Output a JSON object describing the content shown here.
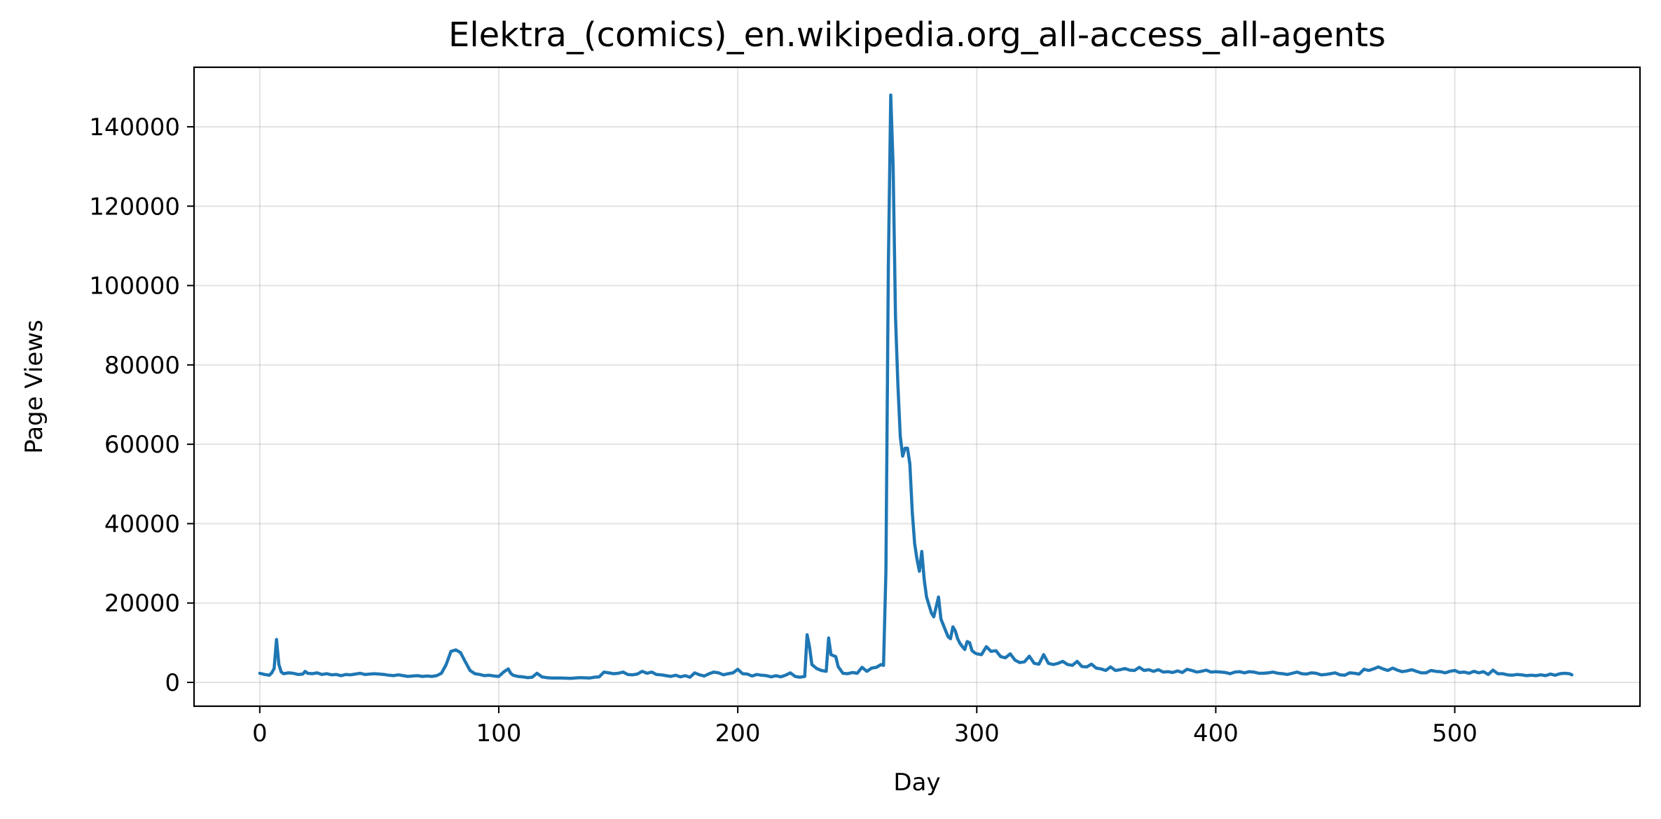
{
  "chart_data": {
    "type": "line",
    "title": "Elektra_(comics)_en.wikipedia.org_all-access_all-agents",
    "xlabel": "Day",
    "ylabel": "Page Views",
    "xlim": [
      -27.5,
      577.5
    ],
    "ylim": [
      -6000,
      155000
    ],
    "xticks": [
      0,
      100,
      200,
      300,
      400,
      500
    ],
    "yticks": [
      0,
      20000,
      40000,
      60000,
      80000,
      100000,
      120000,
      140000
    ],
    "grid": true,
    "legend": "none",
    "series": [
      {
        "color": "#1f77b4",
        "points": [
          [
            0,
            2300
          ],
          [
            2,
            2000
          ],
          [
            4,
            1800
          ],
          [
            5,
            2400
          ],
          [
            6,
            3500
          ],
          [
            7,
            10800
          ],
          [
            8,
            4500
          ],
          [
            9,
            2600
          ],
          [
            10,
            2200
          ],
          [
            12,
            2400
          ],
          [
            14,
            2300
          ],
          [
            16,
            2000
          ],
          [
            18,
            2100
          ],
          [
            19,
            2800
          ],
          [
            20,
            2300
          ],
          [
            22,
            2200
          ],
          [
            24,
            2400
          ],
          [
            26,
            2000
          ],
          [
            28,
            2200
          ],
          [
            30,
            1900
          ],
          [
            32,
            2000
          ],
          [
            34,
            1700
          ],
          [
            36,
            2000
          ],
          [
            38,
            1900
          ],
          [
            40,
            2100
          ],
          [
            42,
            2300
          ],
          [
            44,
            2000
          ],
          [
            46,
            2100
          ],
          [
            48,
            2200
          ],
          [
            50,
            2100
          ],
          [
            52,
            2000
          ],
          [
            54,
            1800
          ],
          [
            56,
            1700
          ],
          [
            58,
            1900
          ],
          [
            60,
            1700
          ],
          [
            62,
            1500
          ],
          [
            64,
            1600
          ],
          [
            66,
            1700
          ],
          [
            68,
            1500
          ],
          [
            70,
            1600
          ],
          [
            72,
            1500
          ],
          [
            74,
            1700
          ],
          [
            76,
            2300
          ],
          [
            78,
            4500
          ],
          [
            80,
            7800
          ],
          [
            82,
            8200
          ],
          [
            84,
            7500
          ],
          [
            86,
            5200
          ],
          [
            88,
            3000
          ],
          [
            90,
            2200
          ],
          [
            92,
            2000
          ],
          [
            94,
            1700
          ],
          [
            96,
            1800
          ],
          [
            98,
            1600
          ],
          [
            100,
            1500
          ],
          [
            102,
            2600
          ],
          [
            104,
            3400
          ],
          [
            105,
            2300
          ],
          [
            106,
            1800
          ],
          [
            108,
            1500
          ],
          [
            110,
            1400
          ],
          [
            112,
            1200
          ],
          [
            114,
            1300
          ],
          [
            116,
            2300
          ],
          [
            118,
            1400
          ],
          [
            120,
            1200
          ],
          [
            122,
            1100
          ],
          [
            126,
            1100
          ],
          [
            130,
            1000
          ],
          [
            134,
            1200
          ],
          [
            138,
            1100
          ],
          [
            140,
            1300
          ],
          [
            142,
            1400
          ],
          [
            144,
            2600
          ],
          [
            146,
            2400
          ],
          [
            148,
            2200
          ],
          [
            150,
            2300
          ],
          [
            152,
            2600
          ],
          [
            154,
            2000
          ],
          [
            156,
            1900
          ],
          [
            158,
            2100
          ],
          [
            160,
            2800
          ],
          [
            162,
            2300
          ],
          [
            164,
            2600
          ],
          [
            166,
            2000
          ],
          [
            168,
            1900
          ],
          [
            170,
            1700
          ],
          [
            172,
            1500
          ],
          [
            174,
            1800
          ],
          [
            176,
            1400
          ],
          [
            178,
            1700
          ],
          [
            180,
            1300
          ],
          [
            182,
            2400
          ],
          [
            184,
            1900
          ],
          [
            186,
            1600
          ],
          [
            188,
            2200
          ],
          [
            190,
            2600
          ],
          [
            192,
            2400
          ],
          [
            194,
            1900
          ],
          [
            196,
            2200
          ],
          [
            198,
            2400
          ],
          [
            200,
            3300
          ],
          [
            202,
            2200
          ],
          [
            204,
            2100
          ],
          [
            206,
            1600
          ],
          [
            208,
            2000
          ],
          [
            210,
            1800
          ],
          [
            212,
            1700
          ],
          [
            214,
            1400
          ],
          [
            216,
            1700
          ],
          [
            218,
            1400
          ],
          [
            220,
            1800
          ],
          [
            222,
            2400
          ],
          [
            224,
            1500
          ],
          [
            226,
            1300
          ],
          [
            228,
            1500
          ],
          [
            229,
            12000
          ],
          [
            230,
            9000
          ],
          [
            231,
            4500
          ],
          [
            233,
            3500
          ],
          [
            235,
            3000
          ],
          [
            237,
            2800
          ],
          [
            238,
            11200
          ],
          [
            239,
            7000
          ],
          [
            241,
            6500
          ],
          [
            242,
            4000
          ],
          [
            244,
            2300
          ],
          [
            246,
            2200
          ],
          [
            248,
            2500
          ],
          [
            250,
            2300
          ],
          [
            252,
            3800
          ],
          [
            254,
            2800
          ],
          [
            256,
            3600
          ],
          [
            258,
            3800
          ],
          [
            260,
            4500
          ],
          [
            261,
            4300
          ],
          [
            262,
            28000
          ],
          [
            263,
            105000
          ],
          [
            264,
            148000
          ],
          [
            265,
            130000
          ],
          [
            266,
            92000
          ],
          [
            267,
            75000
          ],
          [
            268,
            62000
          ],
          [
            269,
            57000
          ],
          [
            270,
            59000
          ],
          [
            271,
            59000
          ],
          [
            272,
            55000
          ],
          [
            273,
            43000
          ],
          [
            274,
            35000
          ],
          [
            275,
            31000
          ],
          [
            276,
            28000
          ],
          [
            277,
            33000
          ],
          [
            278,
            26000
          ],
          [
            279,
            21500
          ],
          [
            280,
            19500
          ],
          [
            281,
            17500
          ],
          [
            282,
            16500
          ],
          [
            283,
            19000
          ],
          [
            284,
            21500
          ],
          [
            285,
            16000
          ],
          [
            286,
            14500
          ],
          [
            287,
            13000
          ],
          [
            288,
            11500
          ],
          [
            289,
            11000
          ],
          [
            290,
            14000
          ],
          [
            291,
            13000
          ],
          [
            292,
            11000
          ],
          [
            293,
            9800
          ],
          [
            294,
            9000
          ],
          [
            295,
            8300
          ],
          [
            296,
            10300
          ],
          [
            297,
            10000
          ],
          [
            298,
            8000
          ],
          [
            299,
            7500
          ],
          [
            300,
            7200
          ],
          [
            302,
            7000
          ],
          [
            304,
            9000
          ],
          [
            306,
            7800
          ],
          [
            308,
            8000
          ],
          [
            310,
            6500
          ],
          [
            312,
            6200
          ],
          [
            314,
            7200
          ],
          [
            316,
            5600
          ],
          [
            318,
            5000
          ],
          [
            320,
            5200
          ],
          [
            322,
            6600
          ],
          [
            324,
            4800
          ],
          [
            326,
            4600
          ],
          [
            328,
            7000
          ],
          [
            330,
            4800
          ],
          [
            332,
            4500
          ],
          [
            334,
            4800
          ],
          [
            336,
            5300
          ],
          [
            338,
            4500
          ],
          [
            340,
            4300
          ],
          [
            342,
            5300
          ],
          [
            344,
            4000
          ],
          [
            346,
            3900
          ],
          [
            348,
            4600
          ],
          [
            350,
            3600
          ],
          [
            352,
            3400
          ],
          [
            354,
            3000
          ],
          [
            356,
            3900
          ],
          [
            358,
            3000
          ],
          [
            360,
            3200
          ],
          [
            362,
            3500
          ],
          [
            364,
            3100
          ],
          [
            366,
            3000
          ],
          [
            368,
            3800
          ],
          [
            370,
            3000
          ],
          [
            372,
            3200
          ],
          [
            374,
            2800
          ],
          [
            376,
            3200
          ],
          [
            378,
            2600
          ],
          [
            380,
            2700
          ],
          [
            382,
            2500
          ],
          [
            384,
            2900
          ],
          [
            386,
            2500
          ],
          [
            388,
            3300
          ],
          [
            390,
            3000
          ],
          [
            392,
            2600
          ],
          [
            394,
            2800
          ],
          [
            396,
            3100
          ],
          [
            398,
            2600
          ],
          [
            400,
            2700
          ],
          [
            402,
            2600
          ],
          [
            404,
            2500
          ],
          [
            406,
            2200
          ],
          [
            408,
            2600
          ],
          [
            410,
            2700
          ],
          [
            412,
            2400
          ],
          [
            414,
            2700
          ],
          [
            416,
            2600
          ],
          [
            418,
            2300
          ],
          [
            420,
            2300
          ],
          [
            422,
            2400
          ],
          [
            424,
            2600
          ],
          [
            426,
            2300
          ],
          [
            428,
            2200
          ],
          [
            430,
            2000
          ],
          [
            432,
            2300
          ],
          [
            434,
            2600
          ],
          [
            436,
            2200
          ],
          [
            438,
            2100
          ],
          [
            440,
            2400
          ],
          [
            442,
            2300
          ],
          [
            444,
            1900
          ],
          [
            446,
            2000
          ],
          [
            448,
            2200
          ],
          [
            450,
            2400
          ],
          [
            452,
            1900
          ],
          [
            454,
            1800
          ],
          [
            456,
            2400
          ],
          [
            458,
            2300
          ],
          [
            460,
            2100
          ],
          [
            462,
            3300
          ],
          [
            464,
            3000
          ],
          [
            466,
            3400
          ],
          [
            468,
            3900
          ],
          [
            470,
            3400
          ],
          [
            472,
            3000
          ],
          [
            474,
            3600
          ],
          [
            476,
            3100
          ],
          [
            478,
            2700
          ],
          [
            480,
            2900
          ],
          [
            482,
            3200
          ],
          [
            484,
            2800
          ],
          [
            486,
            2400
          ],
          [
            488,
            2400
          ],
          [
            490,
            3000
          ],
          [
            492,
            2800
          ],
          [
            494,
            2700
          ],
          [
            496,
            2400
          ],
          [
            498,
            2800
          ],
          [
            500,
            3000
          ],
          [
            502,
            2500
          ],
          [
            504,
            2600
          ],
          [
            506,
            2300
          ],
          [
            508,
            2800
          ],
          [
            510,
            2400
          ],
          [
            512,
            2700
          ],
          [
            514,
            2000
          ],
          [
            516,
            3100
          ],
          [
            518,
            2200
          ],
          [
            520,
            2200
          ],
          [
            522,
            1900
          ],
          [
            524,
            1800
          ],
          [
            526,
            2000
          ],
          [
            528,
            1900
          ],
          [
            530,
            1700
          ],
          [
            532,
            1800
          ],
          [
            534,
            1700
          ],
          [
            536,
            1900
          ],
          [
            538,
            1700
          ],
          [
            540,
            2100
          ],
          [
            542,
            1800
          ],
          [
            544,
            2200
          ],
          [
            546,
            2300
          ],
          [
            548,
            2200
          ],
          [
            549,
            1900
          ]
        ]
      }
    ]
  }
}
